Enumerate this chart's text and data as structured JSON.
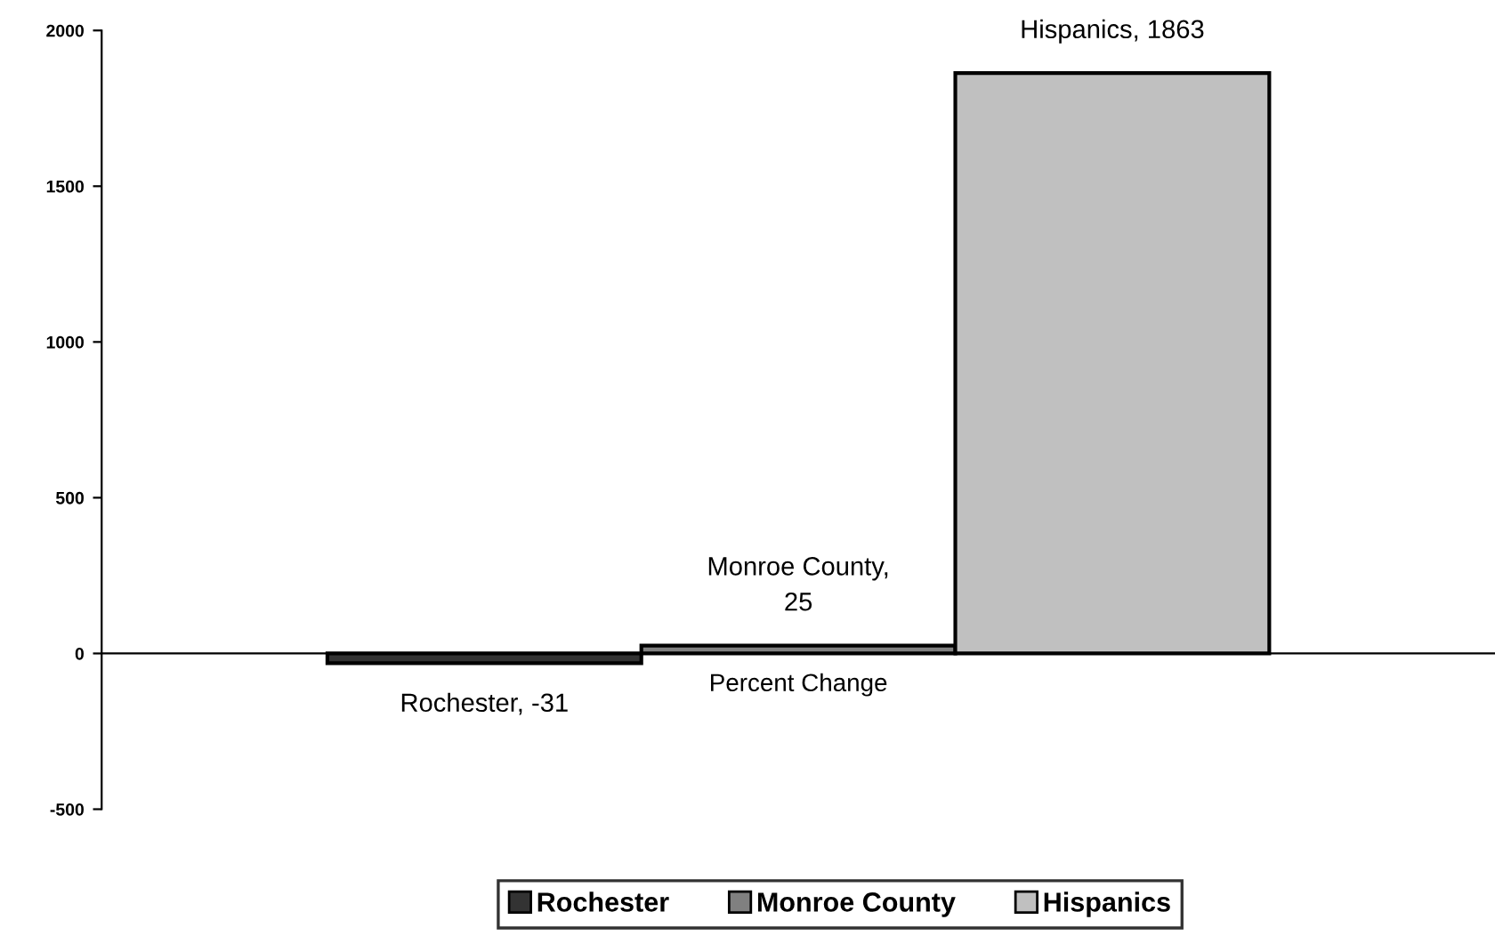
{
  "chart_data": {
    "type": "bar",
    "categories": [
      "Percent Change"
    ],
    "series": [
      {
        "name": "Rochester",
        "color": "#333333",
        "values": [
          -31
        ],
        "value_labels": [
          "Rochester, -31"
        ]
      },
      {
        "name": "Monroe County",
        "color": "#808080",
        "values": [
          25
        ],
        "value_labels": [
          "Monroe County,\n25"
        ]
      },
      {
        "name": "Hispanics",
        "color": "#c0c0c0",
        "values": [
          1863
        ],
        "value_labels": [
          "Hispanics, 1863"
        ]
      }
    ],
    "ylim": [
      -500,
      2000
    ],
    "yticks": [
      -500,
      0,
      500,
      1000,
      1500,
      2000
    ],
    "legend": "bottom"
  }
}
